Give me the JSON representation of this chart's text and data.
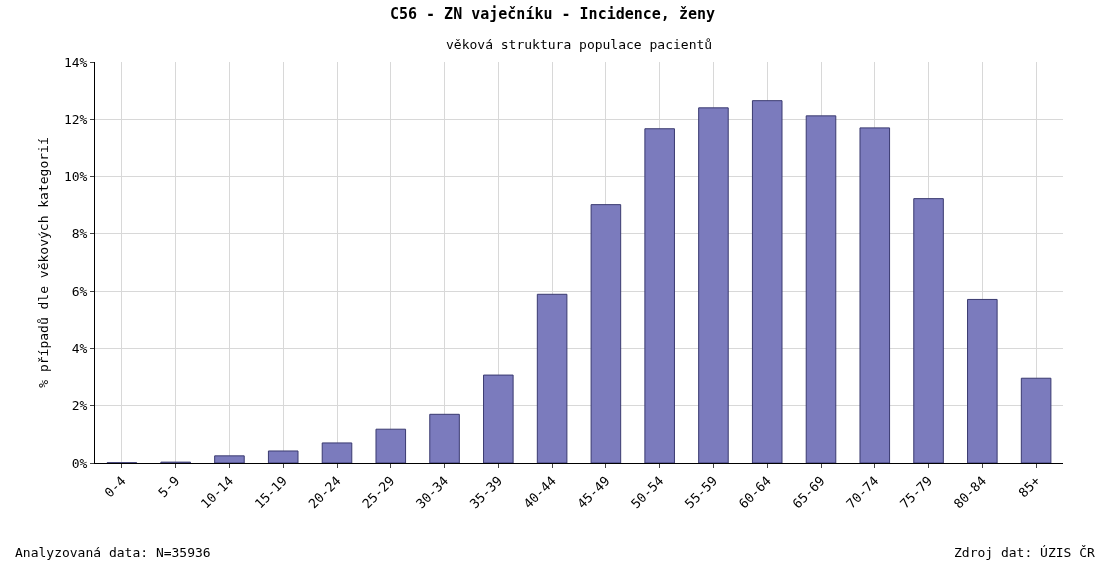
{
  "chart_data": {
    "type": "bar",
    "title": "C56 - ZN vaječníku - Incidence, ženy",
    "subtitle": "věková struktura populace pacientů",
    "ylabel": "% případů dle věkových kategorií",
    "categories": [
      "0-4",
      "5-9",
      "10-14",
      "15-19",
      "20-24",
      "25-29",
      "30-34",
      "35-39",
      "40-44",
      "45-49",
      "50-54",
      "55-59",
      "60-64",
      "65-69",
      "70-74",
      "75-79",
      "80-84",
      "85+"
    ],
    "values": [
      0.01,
      0.03,
      0.25,
      0.42,
      0.7,
      1.18,
      1.7,
      3.07,
      5.89,
      9.02,
      11.67,
      12.4,
      12.65,
      12.12,
      11.7,
      9.23,
      5.71,
      2.96
    ],
    "color": "#7b7bbd",
    "ylim": [
      0,
      14
    ],
    "yticks": [
      {
        "value": 0,
        "label": "0%"
      },
      {
        "value": 2,
        "label": "2%"
      },
      {
        "value": 4,
        "label": "4%"
      },
      {
        "value": 6,
        "label": "6%"
      },
      {
        "value": 8,
        "label": "8%"
      },
      {
        "value": 10,
        "label": "10%"
      },
      {
        "value": 12,
        "label": "12%"
      },
      {
        "value": 14,
        "label": "14%"
      }
    ],
    "grid": true,
    "annotations": [
      "Analyzovaná data: N=35936",
      "Zdroj dat: ÚZIS ČR"
    ]
  }
}
